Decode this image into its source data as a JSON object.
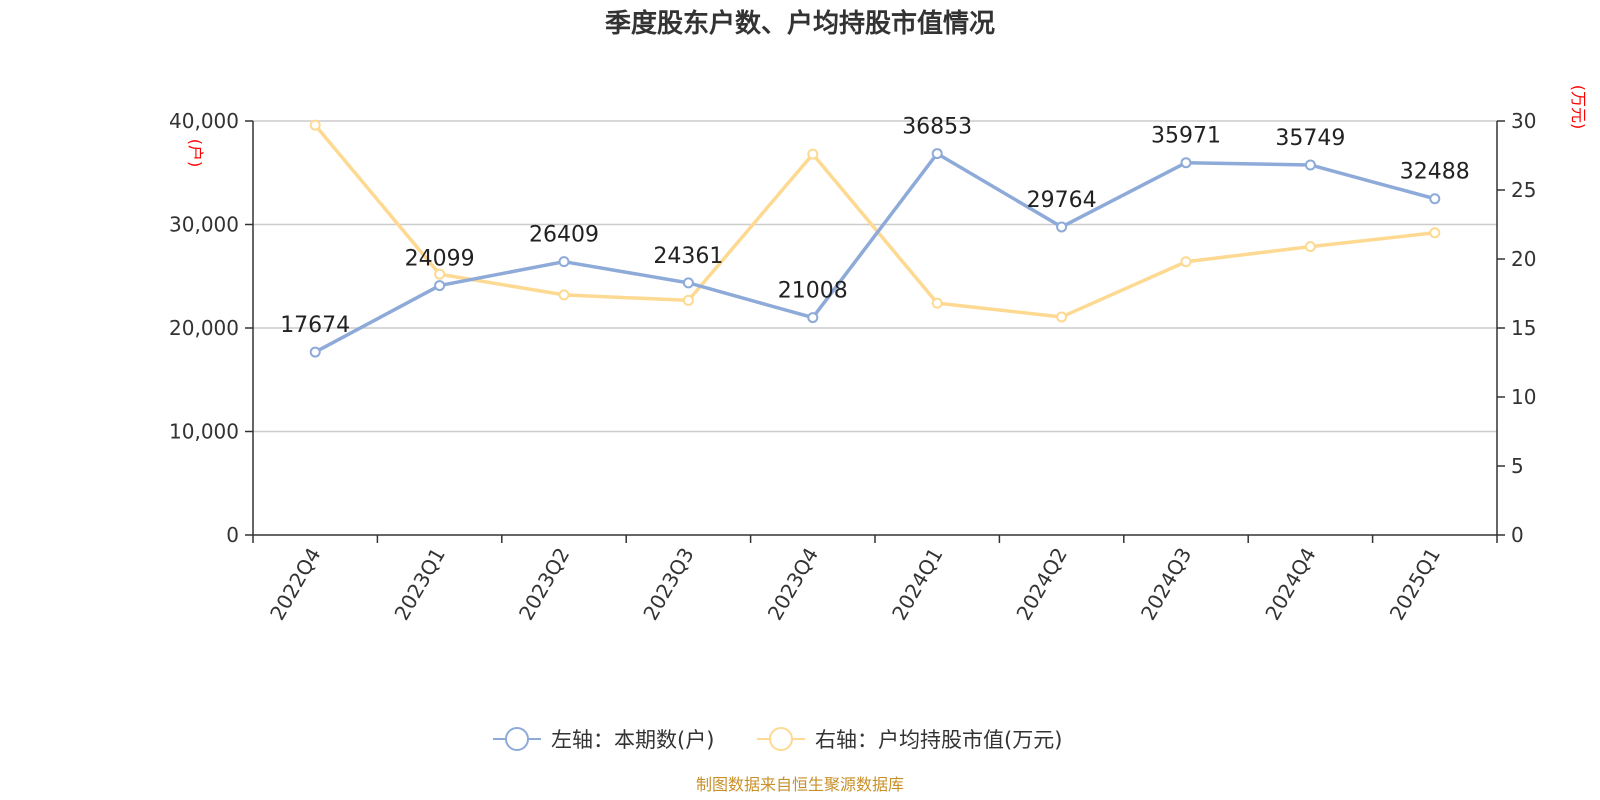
{
  "chart_data": {
    "type": "line",
    "title": "季度股东户数、户均持股市值情况",
    "categories": [
      "2022Q4",
      "2023Q1",
      "2023Q2",
      "2023Q3",
      "2023Q4",
      "2024Q1",
      "2024Q2",
      "2024Q3",
      "2024Q4",
      "2025Q1"
    ],
    "left_axis": {
      "unit": "(户)",
      "ylim": [
        0,
        40000
      ],
      "ticks": [
        0,
        10000,
        20000,
        30000,
        40000
      ],
      "tick_labels": [
        "0",
        "10,000",
        "20,000",
        "30,000",
        "40,000"
      ]
    },
    "right_axis": {
      "unit": "(万元)",
      "ylim": [
        0,
        30
      ],
      "ticks": [
        0,
        5,
        10,
        15,
        20,
        25,
        30
      ],
      "tick_labels": [
        "0",
        "5",
        "10",
        "15",
        "20",
        "25",
        "30"
      ]
    },
    "series": [
      {
        "name": "左轴：本期数(户)",
        "axis": "left",
        "color": "#8eaad8",
        "values": [
          17674,
          24099,
          26409,
          24361,
          21008,
          36853,
          29764,
          35971,
          35749,
          32488
        ],
        "labels": [
          "17674",
          "24099",
          "26409",
          "24361",
          "21008",
          "36853",
          "29764",
          "35971",
          "35749",
          "32488"
        ]
      },
      {
        "name": "右轴：户均持股市值(万元)",
        "axis": "right",
        "color": "#fdd991",
        "values": [
          29.7,
          18.9,
          17.4,
          17.0,
          27.6,
          16.8,
          15.8,
          19.8,
          20.9,
          21.9
        ]
      }
    ],
    "grid": true,
    "legend_position": "bottom-center",
    "source": "制图数据来自恒生聚源数据库"
  }
}
